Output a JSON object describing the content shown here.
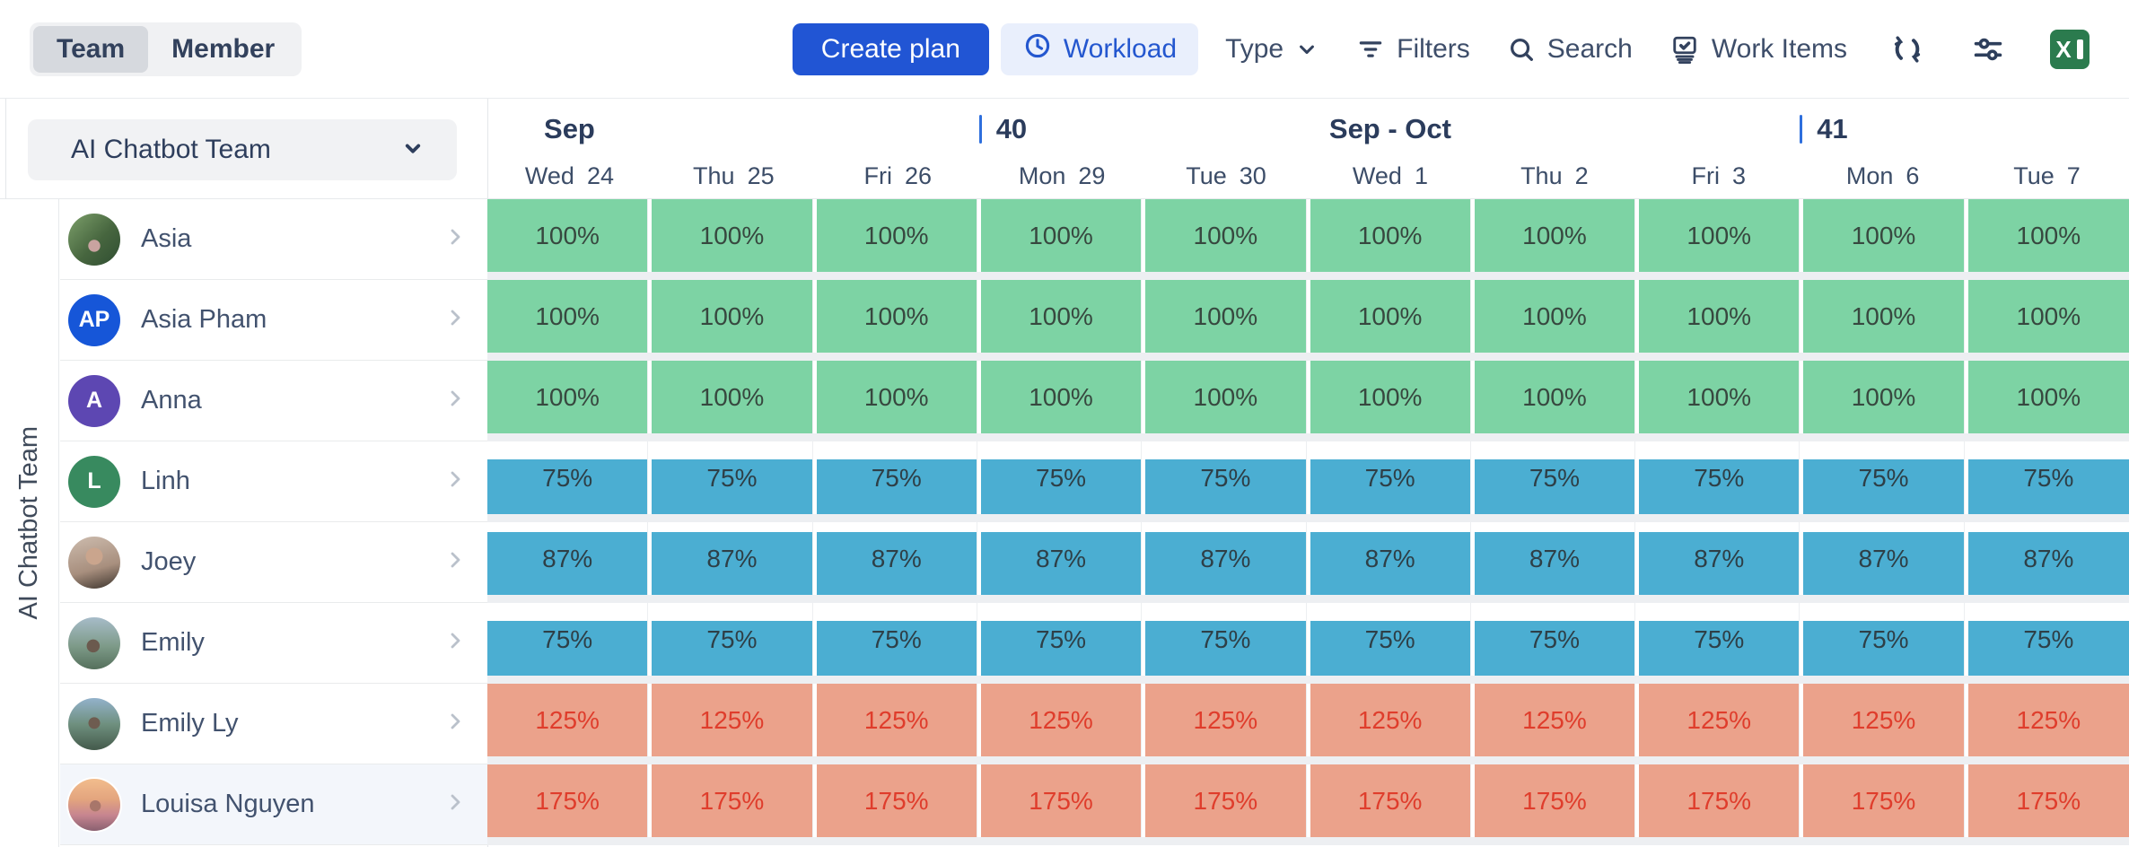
{
  "colors": {
    "accent_blue": "#2155d4",
    "workload_chip_bg": "#e9effc",
    "workload_chip_fg": "#2457cf",
    "week_bar": "#2e6fdd",
    "excel_green": "#2b7b4e",
    "status": {
      "ok": {
        "fill": "#7dd3a4",
        "text": "#37483f"
      },
      "under": {
        "fill": "#4baed2",
        "text": "#2e3f47"
      },
      "over": {
        "fill": "#eba28b",
        "text": "#df3d2c"
      }
    },
    "avatar": {
      "AP": "#1656d8",
      "A": "#5d47b2",
      "L": "#388a5f"
    }
  },
  "toolbar": {
    "view_toggle": {
      "options": [
        "Team",
        "Member"
      ],
      "selected": "Team"
    },
    "create_plan_label": "Create plan",
    "workload_label": "Workload",
    "type_label": "Type",
    "filters_label": "Filters",
    "search_label": "Search",
    "work_items_label": "Work Items"
  },
  "sidebar": {
    "team_selector_value": "AI Chatbot Team",
    "rail_label": "AI Chatbot Team"
  },
  "timeline": {
    "months": [
      {
        "label": "Sep",
        "col": 0
      },
      {
        "label": "Sep - Oct",
        "col": 5
      }
    ],
    "weeks": [
      {
        "label": "40",
        "col": 3
      },
      {
        "label": "41",
        "col": 8
      }
    ],
    "days": [
      {
        "dow": "Wed",
        "num": "24"
      },
      {
        "dow": "Thu",
        "num": "25"
      },
      {
        "dow": "Fri",
        "num": "26"
      },
      {
        "dow": "Mon",
        "num": "29"
      },
      {
        "dow": "Tue",
        "num": "30"
      },
      {
        "dow": "Wed",
        "num": "1"
      },
      {
        "dow": "Thu",
        "num": "2"
      },
      {
        "dow": "Fri",
        "num": "3"
      },
      {
        "dow": "Mon",
        "num": "6"
      },
      {
        "dow": "Tue",
        "num": "7"
      }
    ]
  },
  "members": [
    {
      "name": "Asia",
      "avatar": {
        "type": "photo",
        "style": "park"
      },
      "status": "ok",
      "highlighted": false,
      "cells": [
        "100%",
        "100%",
        "100%",
        "100%",
        "100%",
        "100%",
        "100%",
        "100%",
        "100%",
        "100%"
      ]
    },
    {
      "name": "Asia Pham",
      "avatar": {
        "type": "initials",
        "text": "AP",
        "color": "#1656d8"
      },
      "status": "ok",
      "highlighted": false,
      "cells": [
        "100%",
        "100%",
        "100%",
        "100%",
        "100%",
        "100%",
        "100%",
        "100%",
        "100%",
        "100%"
      ]
    },
    {
      "name": "Anna",
      "avatar": {
        "type": "initials",
        "text": "A",
        "color": "#5d47b2"
      },
      "status": "ok",
      "highlighted": false,
      "cells": [
        "100%",
        "100%",
        "100%",
        "100%",
        "100%",
        "100%",
        "100%",
        "100%",
        "100%",
        "100%"
      ]
    },
    {
      "name": "Linh",
      "avatar": {
        "type": "initials",
        "text": "L",
        "color": "#388a5f"
      },
      "status": "under",
      "highlighted": false,
      "cells": [
        "75%",
        "75%",
        "75%",
        "75%",
        "75%",
        "75%",
        "75%",
        "75%",
        "75%",
        "75%"
      ]
    },
    {
      "name": "Joey",
      "avatar": {
        "type": "photo",
        "style": "portrait"
      },
      "status": "under",
      "highlighted": false,
      "cells": [
        "87%",
        "87%",
        "87%",
        "87%",
        "87%",
        "87%",
        "87%",
        "87%",
        "87%",
        "87%"
      ]
    },
    {
      "name": "Emily",
      "avatar": {
        "type": "photo",
        "style": "mountain"
      },
      "status": "under",
      "highlighted": false,
      "cells": [
        "75%",
        "75%",
        "75%",
        "75%",
        "75%",
        "75%",
        "75%",
        "75%",
        "75%",
        "75%"
      ]
    },
    {
      "name": "Emily Ly",
      "avatar": {
        "type": "photo",
        "style": "mountain2"
      },
      "status": "over",
      "highlighted": false,
      "cells": [
        "125%",
        "125%",
        "125%",
        "125%",
        "125%",
        "125%",
        "125%",
        "125%",
        "125%",
        "125%"
      ]
    },
    {
      "name": "Louisa Nguyen",
      "avatar": {
        "type": "photo",
        "style": "sunset"
      },
      "status": "over",
      "highlighted": true,
      "cells": [
        "175%",
        "175%",
        "175%",
        "175%",
        "175%",
        "175%",
        "175%",
        "175%",
        "175%",
        "175%"
      ]
    }
  ]
}
